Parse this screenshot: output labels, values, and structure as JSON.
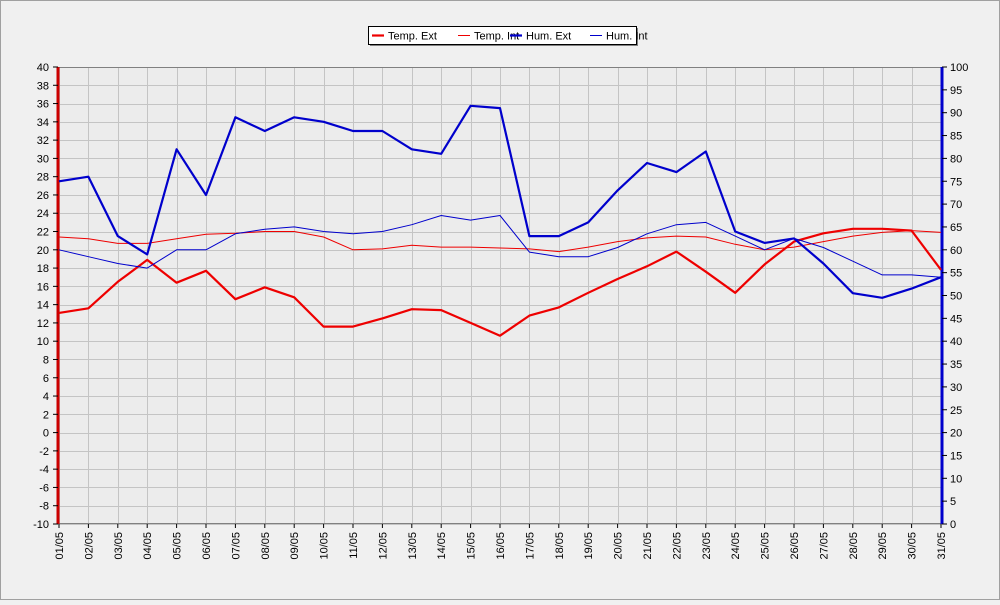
{
  "colors": {
    "background": "#f0f0f0",
    "plot_background": "#ececec",
    "grid": "#c4c4c4",
    "temp": "#ee0000",
    "hum": "#0000cc",
    "left_axis": "#cc0000",
    "right_axis": "#0000cc"
  },
  "chart_data": {
    "type": "line",
    "grid": true,
    "legend_position": "top-center",
    "categories": [
      "01/05",
      "02/05",
      "03/05",
      "04/05",
      "05/05",
      "06/05",
      "07/05",
      "08/05",
      "09/05",
      "10/05",
      "11/05",
      "12/05",
      "13/05",
      "14/05",
      "15/05",
      "16/05",
      "17/05",
      "18/05",
      "19/05",
      "20/05",
      "21/05",
      "22/05",
      "23/05",
      "24/05",
      "25/05",
      "26/05",
      "27/05",
      "28/05",
      "29/05",
      "30/05",
      "31/05"
    ],
    "y_left": {
      "min": -10,
      "max": 40,
      "ticks": [
        -10,
        -8,
        -6,
        -4,
        -2,
        0,
        2,
        4,
        6,
        8,
        10,
        12,
        14,
        16,
        18,
        20,
        22,
        24,
        26,
        28,
        30,
        32,
        34,
        36,
        38,
        40
      ]
    },
    "y_right": {
      "min": 0,
      "max": 100,
      "ticks": [
        0,
        5,
        10,
        15,
        20,
        25,
        30,
        35,
        40,
        45,
        50,
        55,
        60,
        65,
        70,
        75,
        80,
        85,
        90,
        95,
        100
      ]
    },
    "series": [
      {
        "name": "Temp. Ext",
        "axis": "left",
        "color": "#ee0000",
        "width": 2.2,
        "values": [
          13.1,
          13.6,
          16.5,
          18.9,
          16.4,
          17.7,
          14.6,
          15.9,
          14.8,
          11.6,
          11.6,
          12.5,
          13.5,
          13.4,
          12.0,
          10.6,
          12.8,
          13.7,
          15.3,
          16.8,
          18.2,
          19.8,
          17.6,
          15.3,
          18.4,
          20.9,
          21.8,
          22.3,
          22.3,
          22.1,
          17.8
        ]
      },
      {
        "name": "Temp. Int",
        "axis": "left",
        "color": "#ee0000",
        "width": 1.0,
        "values": [
          21.4,
          21.2,
          20.7,
          20.7,
          21.2,
          21.7,
          21.8,
          22.0,
          22.0,
          21.4,
          20.0,
          20.1,
          20.5,
          20.3,
          20.3,
          20.2,
          20.1,
          19.8,
          20.3,
          20.9,
          21.3,
          21.5,
          21.4,
          20.6,
          20.0,
          20.3,
          20.9,
          21.5,
          21.9,
          22.1,
          21.9
        ]
      },
      {
        "name": "Hum. Ext",
        "axis": "right",
        "color": "#0000cc",
        "width": 2.2,
        "values": [
          75,
          76,
          63,
          59,
          82,
          72,
          89,
          86,
          89,
          88,
          86,
          86,
          82,
          81,
          91.5,
          91,
          63,
          63,
          66,
          73,
          79,
          77,
          81.5,
          64,
          61.5,
          62.5,
          57,
          50.5,
          49.5,
          51.5,
          54
        ]
      },
      {
        "name": "Hum. Int",
        "axis": "right",
        "color": "#0000cc",
        "width": 1.0,
        "values": [
          60,
          58.5,
          57,
          56,
          60,
          60,
          63.5,
          64.5,
          65,
          64,
          63.5,
          64,
          65.5,
          67.5,
          66.5,
          67.5,
          59.5,
          58.5,
          58.5,
          60.5,
          63.5,
          65.5,
          66,
          63,
          60,
          62.5,
          60.5,
          57.5,
          54.5,
          54.5,
          54
        ]
      }
    ]
  }
}
